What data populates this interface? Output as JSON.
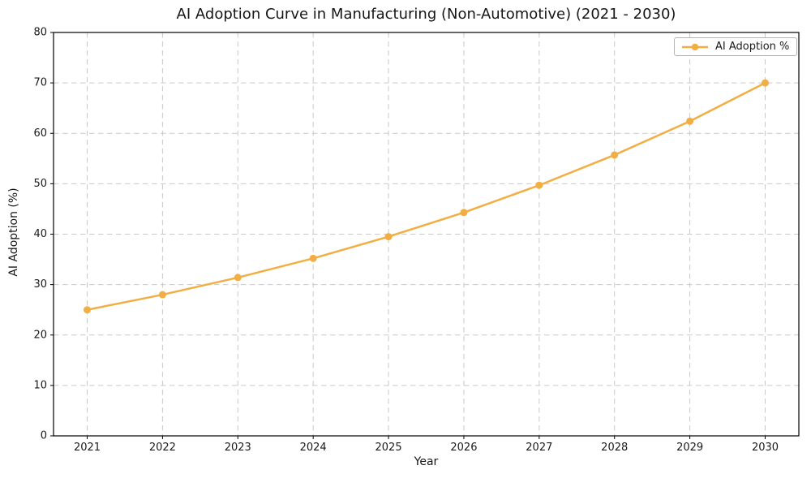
{
  "chart_data": {
    "type": "line",
    "title": "AI Adoption Curve in Manufacturing (Non-Automotive) (2021 - 2030)",
    "xlabel": "Year",
    "ylabel": "AI Adoption (%)",
    "x": [
      "2021",
      "2022",
      "2023",
      "2024",
      "2025",
      "2026",
      "2027",
      "2028",
      "2029",
      "2030"
    ],
    "series": [
      {
        "name": "AI Adoption %",
        "color": "#f2ae43",
        "marker": "circle",
        "values": [
          25.0,
          28.0,
          31.4,
          35.2,
          39.5,
          44.3,
          49.7,
          55.7,
          62.4,
          70.0
        ]
      }
    ],
    "ylim": [
      0,
      80
    ],
    "yticks": [
      0,
      10,
      20,
      30,
      40,
      50,
      60,
      70,
      80
    ],
    "grid": true,
    "grid_style": "dashed",
    "legend_position": "upper right",
    "colors": {
      "grid": "#c9c9c9",
      "spine": "#000000",
      "tick_label": "#1a1a1a",
      "background": "#ffffff"
    }
  }
}
